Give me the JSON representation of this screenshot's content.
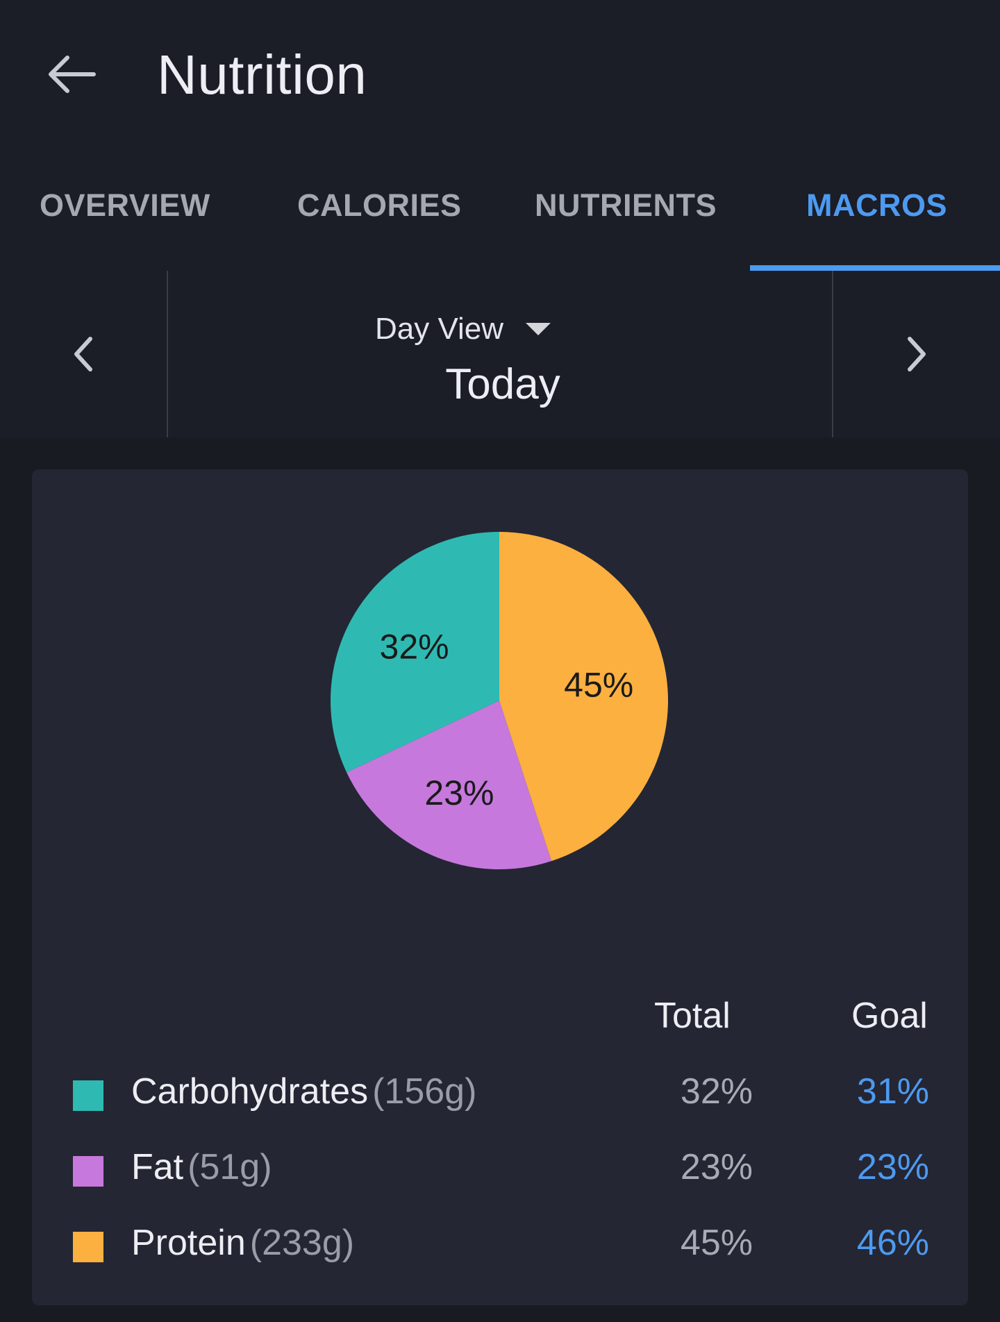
{
  "header": {
    "title": "Nutrition"
  },
  "tabs": [
    {
      "label": "OVERVIEW",
      "active": false
    },
    {
      "label": "CALORIES",
      "active": false
    },
    {
      "label": "NUTRIENTS",
      "active": false
    },
    {
      "label": "MACROS",
      "active": true
    }
  ],
  "date_nav": {
    "view_label": "Day View",
    "date_label": "Today"
  },
  "chart_data": {
    "type": "pie",
    "title": "",
    "slices": [
      {
        "label": "Protein",
        "value": 45,
        "display": "45%",
        "color": "#fbb040"
      },
      {
        "label": "Fat",
        "value": 23,
        "display": "23%",
        "color": "#c678dd"
      },
      {
        "label": "Carbohydrates",
        "value": 32,
        "display": "32%",
        "color": "#2ebab2"
      }
    ]
  },
  "macros": {
    "header_total": "Total",
    "header_goal": "Goal",
    "rows": [
      {
        "name": "Carbohydrates",
        "amount": "(156g)",
        "total": "32%",
        "goal": "31%",
        "color": "#2ebab2"
      },
      {
        "name": "Fat",
        "amount": "(51g)",
        "total": "23%",
        "goal": "23%",
        "color": "#c678dd"
      },
      {
        "name": "Protein",
        "amount": "(233g)",
        "total": "45%",
        "goal": "46%",
        "color": "#fbb040"
      }
    ]
  },
  "icons": {
    "back": "arrow-left-icon",
    "prev": "chevron-left-icon",
    "next": "chevron-right-icon",
    "dropdown": "caret-down-icon"
  },
  "colors": {
    "accent": "#4d9af0",
    "background": "#1b1d27",
    "card": "#242633"
  }
}
